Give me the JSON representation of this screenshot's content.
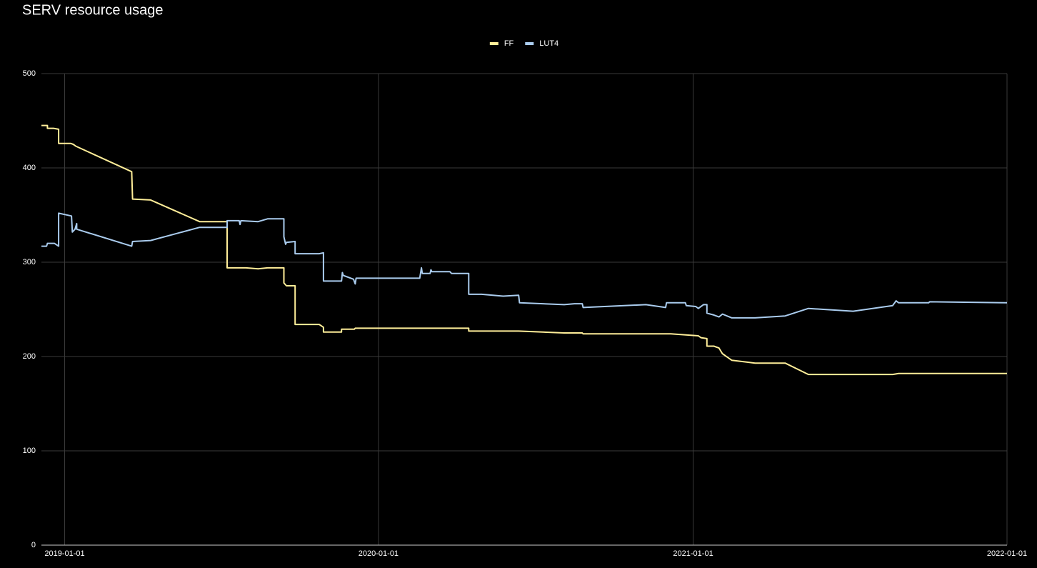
{
  "chart_data": {
    "type": "line",
    "title": "SERV resource usage",
    "legend": "top",
    "grid": true,
    "xlim": [
      "2018-12-05",
      "2022-01-01"
    ],
    "xticks": [
      "2019-01-01",
      "2020-01-01",
      "2021-01-01",
      "2022-01-01"
    ],
    "ylim": [
      0,
      500
    ],
    "yticks": [
      0,
      100,
      200,
      300,
      400,
      500
    ],
    "series": [
      {
        "name": "FF",
        "color": "#ffee99",
        "x": [
          "2018-12-05",
          "2018-12-12",
          "2018-12-12",
          "2018-12-19",
          "2018-12-25",
          "2018-12-25",
          "2019-01-08",
          "2019-01-11",
          "2019-01-14",
          "2019-03-20",
          "2019-03-21",
          "2019-04-11",
          "2019-06-07",
          "2019-07-09",
          "2019-07-09",
          "2019-07-31",
          "2019-08-14",
          "2019-08-25",
          "2019-09-13",
          "2019-09-13",
          "2019-09-16",
          "2019-09-26",
          "2019-09-26",
          "2019-10-24",
          "2019-10-29",
          "2019-10-29",
          "2019-11-19",
          "2019-11-19",
          "2019-12-04",
          "2019-12-05",
          "2020-04-15",
          "2020-04-15",
          "2020-06-12",
          "2020-08-04",
          "2020-08-25",
          "2020-08-26",
          "2020-12-06",
          "2021-01-07",
          "2021-01-10",
          "2021-01-17",
          "2021-01-17",
          "2021-01-25",
          "2021-01-31",
          "2021-02-04",
          "2021-02-15",
          "2021-03-14",
          "2021-04-18",
          "2021-05-15",
          "2021-08-21",
          "2021-08-28",
          "2022-01-01"
        ],
        "values": [
          445,
          445,
          442,
          442,
          441,
          426,
          426,
          425,
          423,
          396,
          367,
          366,
          343,
          343,
          294,
          294,
          293,
          294,
          294,
          278,
          275,
          275,
          234,
          234,
          231,
          226,
          226,
          229,
          229,
          230,
          230,
          227,
          227,
          225,
          225,
          224,
          224,
          222,
          220,
          219,
          211,
          211,
          209,
          203,
          196,
          193,
          193,
          181,
          181,
          182,
          182
        ]
      },
      {
        "name": "LUT4",
        "color": "#aaccee",
        "x": [
          "2018-12-05",
          "2018-12-11",
          "2018-12-12",
          "2018-12-20",
          "2018-12-25",
          "2018-12-25",
          "2019-01-09",
          "2019-01-10",
          "2019-01-13",
          "2019-01-15",
          "2019-01-15",
          "2019-03-20",
          "2019-03-21",
          "2019-04-11",
          "2019-06-07",
          "2019-07-09",
          "2019-07-09",
          "2019-07-23",
          "2019-07-24",
          "2019-07-25",
          "2019-08-14",
          "2019-08-25",
          "2019-09-13",
          "2019-09-13",
          "2019-09-15",
          "2019-09-16",
          "2019-09-26",
          "2019-09-26",
          "2019-10-24",
          "2019-10-29",
          "2019-10-29",
          "2019-11-19",
          "2019-11-20",
          "2019-11-21",
          "2019-12-03",
          "2019-12-05",
          "2019-12-06",
          "2020-02-18",
          "2020-02-20",
          "2020-02-21",
          "2020-03-01",
          "2020-03-02",
          "2020-03-03",
          "2020-03-24",
          "2020-03-26",
          "2020-04-15",
          "2020-04-15",
          "2020-04-30",
          "2020-05-25",
          "2020-06-12",
          "2020-06-13",
          "2020-08-04",
          "2020-08-16",
          "2020-08-25",
          "2020-08-26",
          "2020-11-07",
          "2020-11-30",
          "2020-12-01",
          "2020-12-23",
          "2020-12-24",
          "2021-01-04",
          "2021-01-07",
          "2021-01-13",
          "2021-01-17",
          "2021-01-17",
          "2021-01-25",
          "2021-01-31",
          "2021-02-04",
          "2021-02-15",
          "2021-03-14",
          "2021-04-18",
          "2021-05-15",
          "2021-07-06",
          "2021-08-21",
          "2021-08-25",
          "2021-08-28",
          "2021-10-02",
          "2021-10-03",
          "2022-01-01"
        ],
        "values": [
          317,
          317,
          320,
          320,
          317,
          352,
          349,
          332,
          335,
          341,
          335,
          317,
          322,
          323,
          337,
          337,
          344,
          344,
          340,
          344,
          343,
          346,
          346,
          327,
          319,
          321,
          322,
          309,
          309,
          310,
          280,
          280,
          289,
          286,
          282,
          277,
          283,
          283,
          294,
          288,
          288,
          292,
          290,
          290,
          288,
          288,
          266,
          266,
          264,
          265,
          257,
          255,
          256,
          256,
          252,
          255,
          252,
          257,
          257,
          254,
          253,
          251,
          255,
          255,
          246,
          244,
          242,
          245,
          241,
          241,
          243,
          251,
          248,
          254,
          259,
          257,
          257,
          258,
          257
        ]
      }
    ]
  }
}
